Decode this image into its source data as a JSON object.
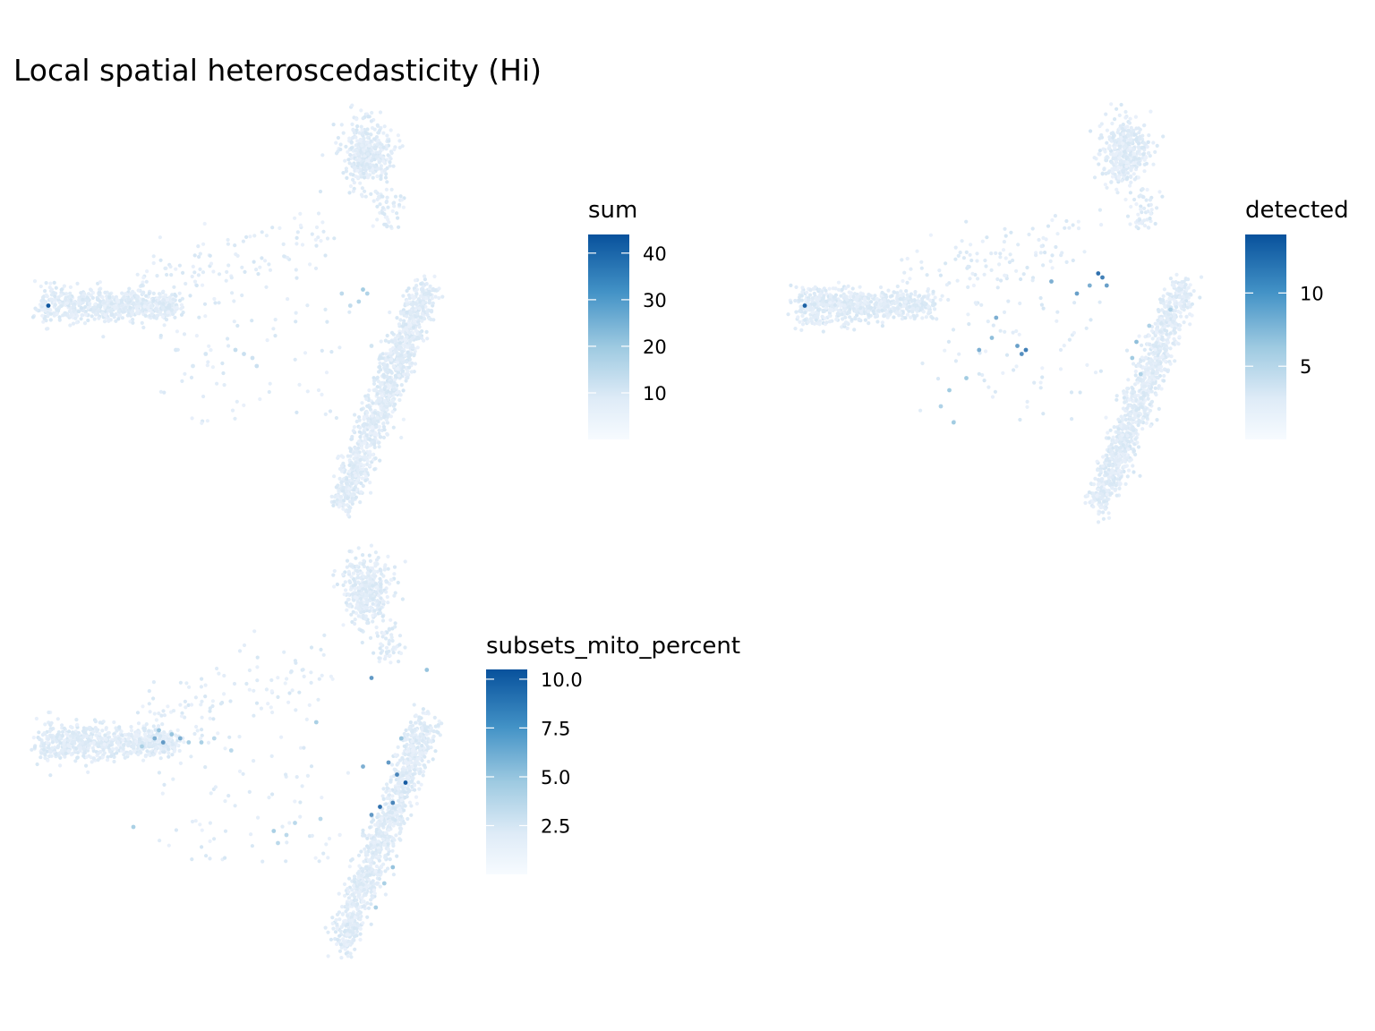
{
  "title": "Local spatial heteroscedasticity (Hi)",
  "colors": {
    "low": "#eef3fc",
    "mid": "#9ecae1",
    "high": "#08519c",
    "background": "#ffffff"
  },
  "chart_data": [
    {
      "type": "scatter",
      "legend_title": "sum",
      "value_range": [
        0,
        44
      ],
      "legend_ticks": [
        {
          "value": 40,
          "label": "40"
        },
        {
          "value": 30,
          "label": "30"
        },
        {
          "value": 20,
          "label": "20"
        },
        {
          "value": 10,
          "label": "10"
        }
      ],
      "highlights": [
        {
          "x": 0.04,
          "y": 0.47,
          "value": 43
        },
        {
          "x": 0.78,
          "y": 0.43,
          "value": 18
        },
        {
          "x": 0.79,
          "y": 0.44,
          "value": 15
        },
        {
          "x": 0.77,
          "y": 0.46,
          "value": 14
        },
        {
          "x": 0.73,
          "y": 0.44,
          "value": 12
        },
        {
          "x": 0.75,
          "y": 0.47,
          "value": 11
        },
        {
          "x": 0.48,
          "y": 0.58,
          "value": 10
        },
        {
          "x": 0.5,
          "y": 0.59,
          "value": 9
        },
        {
          "x": 0.52,
          "y": 0.6,
          "value": 8
        },
        {
          "x": 0.53,
          "y": 0.62,
          "value": 9
        },
        {
          "x": 0.41,
          "y": 0.59,
          "value": 6
        },
        {
          "x": 0.38,
          "y": 0.62,
          "value": 5
        },
        {
          "x": 0.34,
          "y": 0.58,
          "value": 5
        },
        {
          "x": 0.8,
          "y": 0.57,
          "value": 7
        },
        {
          "x": 0.82,
          "y": 0.6,
          "value": 6
        },
        {
          "x": 0.26,
          "y": 0.42,
          "value": 5
        }
      ]
    },
    {
      "type": "scatter",
      "legend_title": "detected",
      "value_range": [
        0,
        14
      ],
      "legend_ticks": [
        {
          "value": 10,
          "label": "10"
        },
        {
          "value": 5,
          "label": "5"
        }
      ],
      "highlights": [
        {
          "x": 0.04,
          "y": 0.47,
          "value": 13
        },
        {
          "x": 0.73,
          "y": 0.39,
          "value": 12
        },
        {
          "x": 0.74,
          "y": 0.4,
          "value": 11
        },
        {
          "x": 0.75,
          "y": 0.42,
          "value": 9
        },
        {
          "x": 0.71,
          "y": 0.42,
          "value": 8
        },
        {
          "x": 0.68,
          "y": 0.44,
          "value": 9
        },
        {
          "x": 0.62,
          "y": 0.41,
          "value": 8
        },
        {
          "x": 0.56,
          "y": 0.58,
          "value": 11
        },
        {
          "x": 0.55,
          "y": 0.59,
          "value": 10
        },
        {
          "x": 0.54,
          "y": 0.57,
          "value": 9
        },
        {
          "x": 0.49,
          "y": 0.5,
          "value": 8
        },
        {
          "x": 0.48,
          "y": 0.55,
          "value": 7
        },
        {
          "x": 0.45,
          "y": 0.58,
          "value": 8
        },
        {
          "x": 0.42,
          "y": 0.65,
          "value": 6
        },
        {
          "x": 0.38,
          "y": 0.68,
          "value": 6
        },
        {
          "x": 0.39,
          "y": 0.76,
          "value": 6
        },
        {
          "x": 0.36,
          "y": 0.72,
          "value": 5
        },
        {
          "x": 0.82,
          "y": 0.56,
          "value": 7
        },
        {
          "x": 0.81,
          "y": 0.6,
          "value": 6
        },
        {
          "x": 0.83,
          "y": 0.64,
          "value": 5
        },
        {
          "x": 0.9,
          "y": 0.48,
          "value": 5
        },
        {
          "x": 0.85,
          "y": 0.52,
          "value": 5
        }
      ]
    },
    {
      "type": "scatter",
      "legend_title": "subsets_mito_percent",
      "value_range": [
        0,
        10.5
      ],
      "legend_ticks": [
        {
          "value": 10,
          "label": "10.0"
        },
        {
          "value": 7.5,
          "label": "7.5"
        },
        {
          "value": 5,
          "label": "5.0"
        },
        {
          "value": 2.5,
          "label": "2.5"
        }
      ],
      "highlights": [
        {
          "x": 0.29,
          "y": 0.46,
          "value": 6
        },
        {
          "x": 0.31,
          "y": 0.47,
          "value": 7
        },
        {
          "x": 0.33,
          "y": 0.45,
          "value": 5
        },
        {
          "x": 0.35,
          "y": 0.46,
          "value": 6
        },
        {
          "x": 0.3,
          "y": 0.44,
          "value": 5
        },
        {
          "x": 0.37,
          "y": 0.47,
          "value": 4
        },
        {
          "x": 0.26,
          "y": 0.48,
          "value": 4
        },
        {
          "x": 0.4,
          "y": 0.47,
          "value": 4
        },
        {
          "x": 0.43,
          "y": 0.46,
          "value": 3
        },
        {
          "x": 0.47,
          "y": 0.49,
          "value": 3
        },
        {
          "x": 0.8,
          "y": 0.31,
          "value": 7
        },
        {
          "x": 0.84,
          "y": 0.52,
          "value": 7
        },
        {
          "x": 0.86,
          "y": 0.55,
          "value": 8
        },
        {
          "x": 0.88,
          "y": 0.57,
          "value": 10
        },
        {
          "x": 0.82,
          "y": 0.63,
          "value": 9
        },
        {
          "x": 0.85,
          "y": 0.62,
          "value": 8
        },
        {
          "x": 0.8,
          "y": 0.65,
          "value": 7
        },
        {
          "x": 0.78,
          "y": 0.53,
          "value": 6
        },
        {
          "x": 0.87,
          "y": 0.46,
          "value": 5
        },
        {
          "x": 0.93,
          "y": 0.29,
          "value": 5
        },
        {
          "x": 0.67,
          "y": 0.42,
          "value": 4
        },
        {
          "x": 0.24,
          "y": 0.68,
          "value": 4
        },
        {
          "x": 0.57,
          "y": 0.69,
          "value": 4
        },
        {
          "x": 0.6,
          "y": 0.7,
          "value": 3
        },
        {
          "x": 0.62,
          "y": 0.67,
          "value": 3
        },
        {
          "x": 0.68,
          "y": 0.66,
          "value": 3
        },
        {
          "x": 0.58,
          "y": 0.72,
          "value": 3
        },
        {
          "x": 0.85,
          "y": 0.78,
          "value": 5
        },
        {
          "x": 0.83,
          "y": 0.82,
          "value": 4
        },
        {
          "x": 0.81,
          "y": 0.88,
          "value": 4
        }
      ]
    }
  ]
}
